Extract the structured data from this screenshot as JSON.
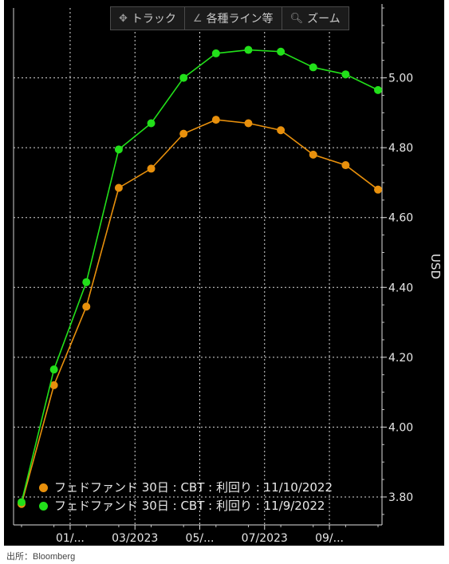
{
  "toolbar": {
    "track_label": "トラック",
    "lines_label": "各種ライン等",
    "zoom_label": "ズーム"
  },
  "chart_data": {
    "type": "line",
    "title": "",
    "xlabel": "",
    "ylabel": "USD",
    "ylim": [
      3.72,
      5.2
    ],
    "yticks": [
      3.8,
      4.0,
      4.2,
      4.4,
      4.6,
      4.8,
      5.0
    ],
    "ytick_labels": [
      "3.80",
      "4.00",
      "4.20",
      "4.40",
      "4.60",
      "4.80",
      "5.00"
    ],
    "x": [
      0,
      1,
      2,
      3,
      4,
      5,
      6,
      7,
      8,
      9,
      10,
      11
    ],
    "xticks": [
      1.5,
      3.5,
      5.5,
      7.5,
      9.5
    ],
    "xtick_labels": [
      "01/...",
      "03/2023",
      "05/...",
      "07/2023",
      "09/..."
    ],
    "grid": true,
    "background": "#000000",
    "series": [
      {
        "name": "フェドファンド 30日 : CBT : 利回り : 11/10/2022",
        "color": "#e8900c",
        "values": [
          3.78,
          4.12,
          4.345,
          4.685,
          4.74,
          4.84,
          4.88,
          4.87,
          4.85,
          4.78,
          4.75,
          4.68
        ]
      },
      {
        "name": "フェドファンド 30日 : CBT : 利回り : 11/9/2022",
        "color": "#22e01a",
        "values": [
          3.785,
          4.165,
          4.415,
          4.795,
          4.87,
          5.0,
          5.07,
          5.08,
          5.075,
          5.03,
          5.01,
          4.965
        ]
      }
    ],
    "legend_position": "bottom-left"
  },
  "source_text": "出所：Bloomberg"
}
